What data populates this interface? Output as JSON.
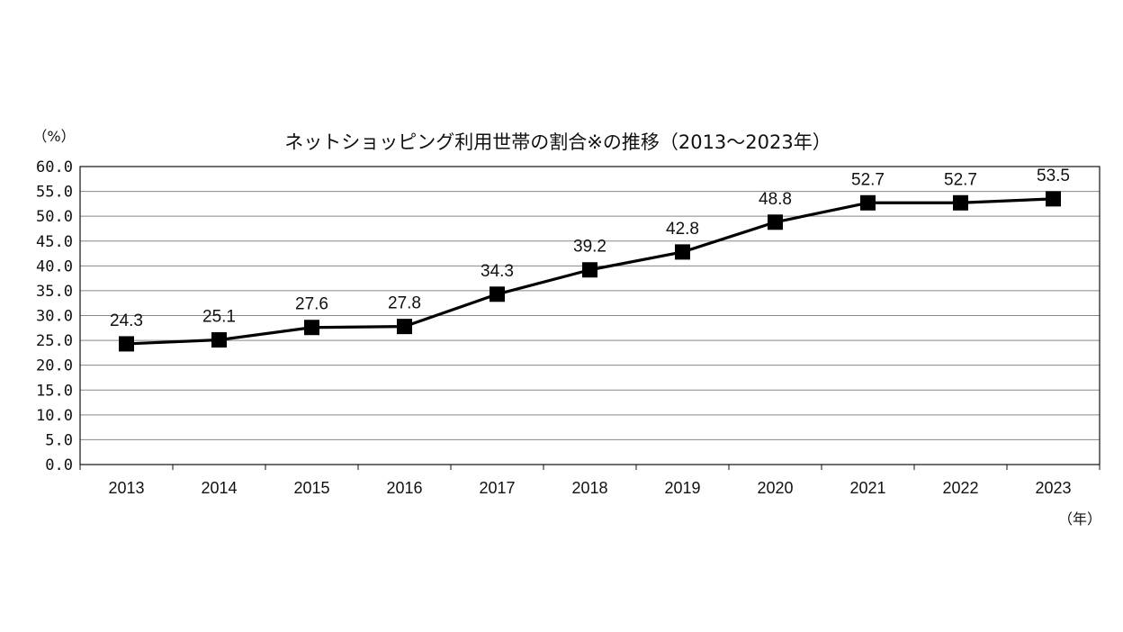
{
  "chart_data": {
    "type": "line",
    "title": "ネットショッピング利用世帯の割合※の推移（2013～2023年）",
    "ylabel": "（%）",
    "xlabel": "（年）",
    "categories": [
      "2013",
      "2014",
      "2015",
      "2016",
      "2017",
      "2018",
      "2019",
      "2020",
      "2021",
      "2022",
      "2023"
    ],
    "values": [
      24.3,
      25.1,
      27.6,
      27.8,
      34.3,
      39.2,
      42.8,
      48.8,
      52.7,
      52.7,
      53.5
    ],
    "data_labels": [
      "24.3",
      "25.1",
      "27.6",
      "27.8",
      "34.3",
      "39.2",
      "42.8",
      "48.8",
      "52.7",
      "52.7",
      "53.5"
    ],
    "ylim": [
      0,
      60
    ],
    "yticks": [
      "0.0",
      "5.0",
      "10.0",
      "15.0",
      "20.0",
      "25.0",
      "30.0",
      "35.0",
      "40.0",
      "45.0",
      "50.0",
      "55.0",
      "60.0"
    ],
    "grid": true,
    "line_color": "#000000",
    "marker": "square"
  }
}
